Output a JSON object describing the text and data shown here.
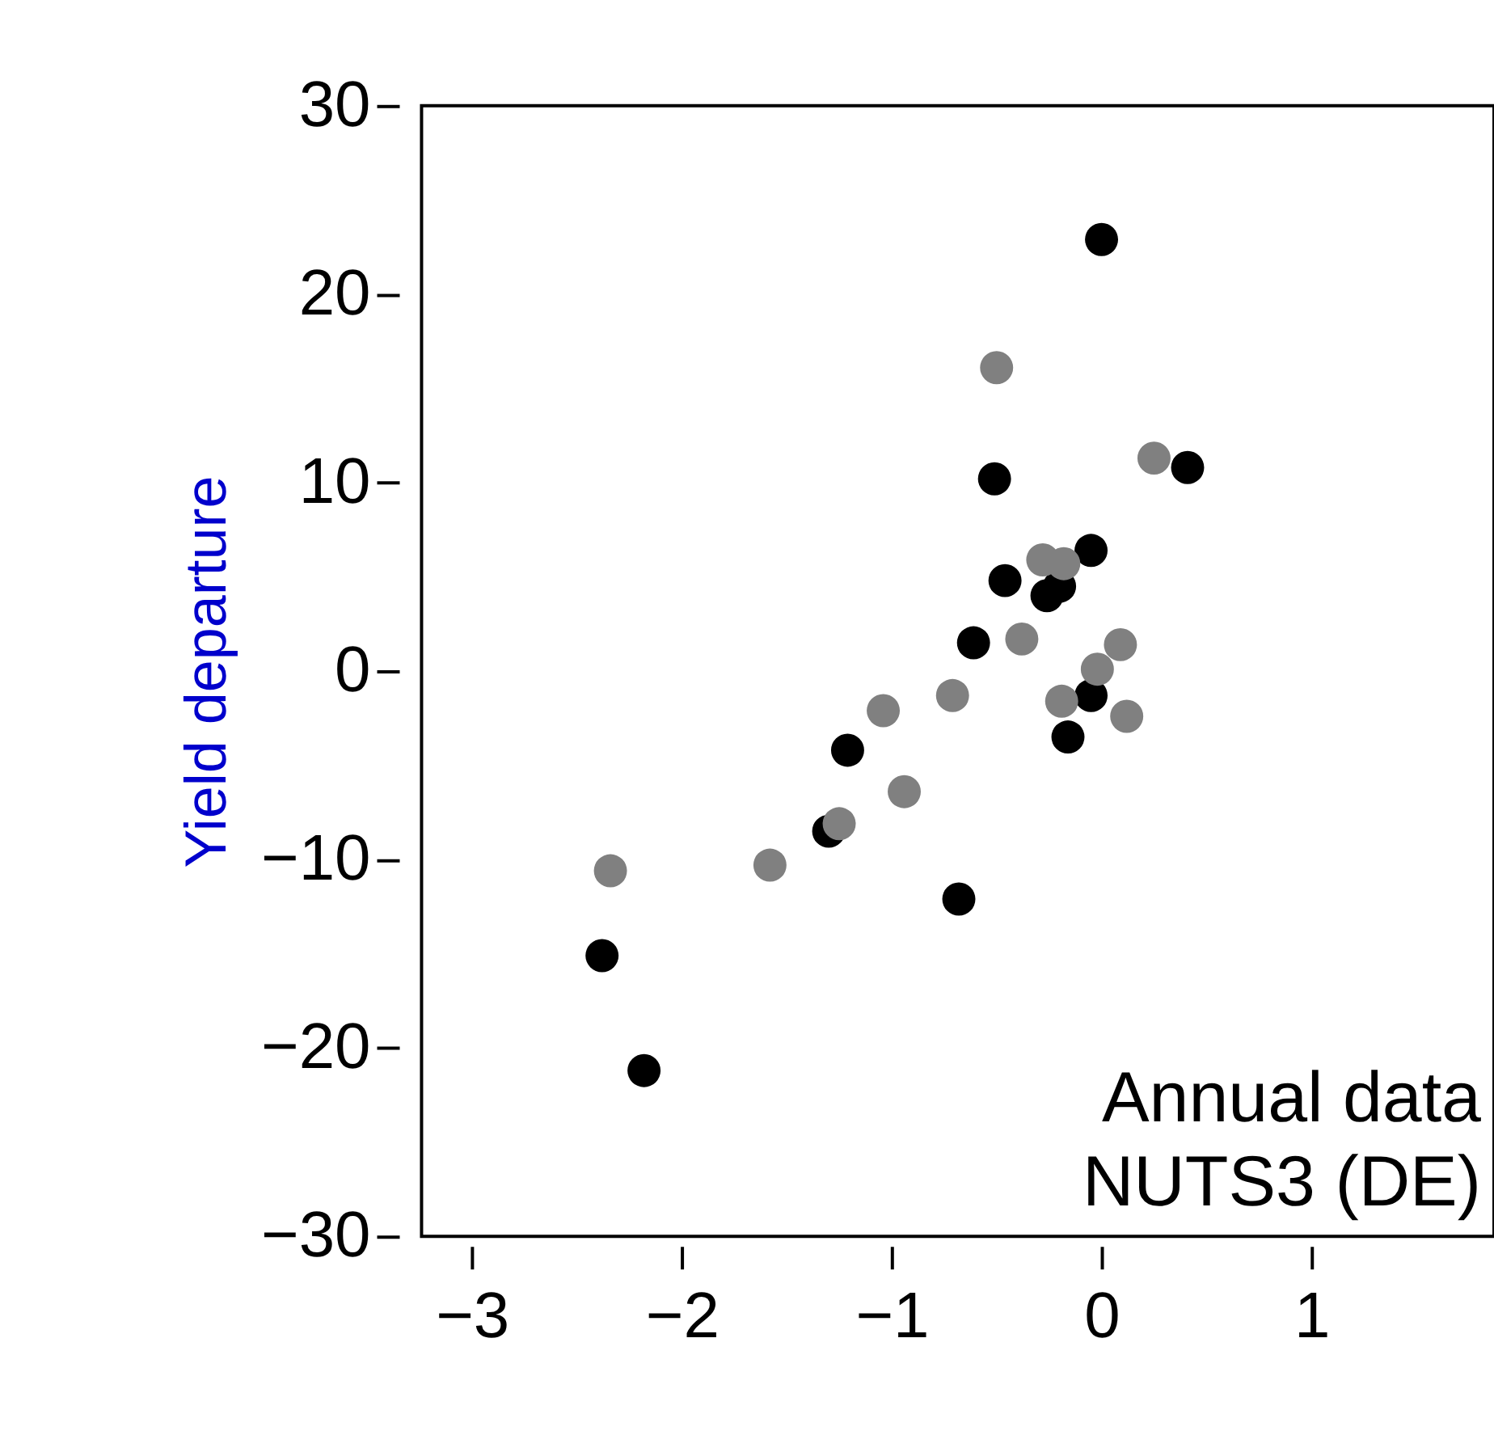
{
  "chart_data": {
    "type": "scatter",
    "ylabel": "Yield departure",
    "xlim": [
      -3.24,
      1.87
    ],
    "xticks": [
      -3,
      -2,
      -1,
      0,
      1
    ],
    "ylim": [
      -30,
      30
    ],
    "yticks": [
      -30,
      -20,
      -10,
      0,
      10,
      20,
      30
    ],
    "grid": false,
    "marker": "circle",
    "annotations": [
      "Annual data",
      "NUTS3 (DE)"
    ],
    "series": [
      {
        "color": "#000000",
        "x": [
          0.0,
          -0.51,
          0.41,
          -0.46,
          -0.05,
          -0.26,
          -0.2,
          -0.61,
          -1.21,
          -0.16,
          -0.05,
          -1.3,
          -0.68,
          -2.38,
          -2.18
        ],
        "values": [
          22.9,
          10.2,
          10.8,
          4.8,
          6.4,
          4.0,
          4.5,
          1.5,
          -4.2,
          -3.5,
          -1.3,
          -8.5,
          -12.1,
          -15.1,
          -21.2
        ]
      },
      {
        "color": "#808080",
        "x": [
          -0.5,
          0.25,
          -0.28,
          -0.18,
          -0.38,
          0.09,
          -0.02,
          -0.19,
          0.12,
          -0.71,
          -1.04,
          -0.94,
          -1.25,
          -1.58,
          -2.34
        ],
        "values": [
          16.1,
          11.3,
          5.9,
          5.7,
          1.7,
          1.4,
          0.1,
          -1.6,
          -2.4,
          -1.3,
          -2.1,
          -6.4,
          -8.1,
          -10.3,
          -10.6
        ]
      }
    ]
  }
}
